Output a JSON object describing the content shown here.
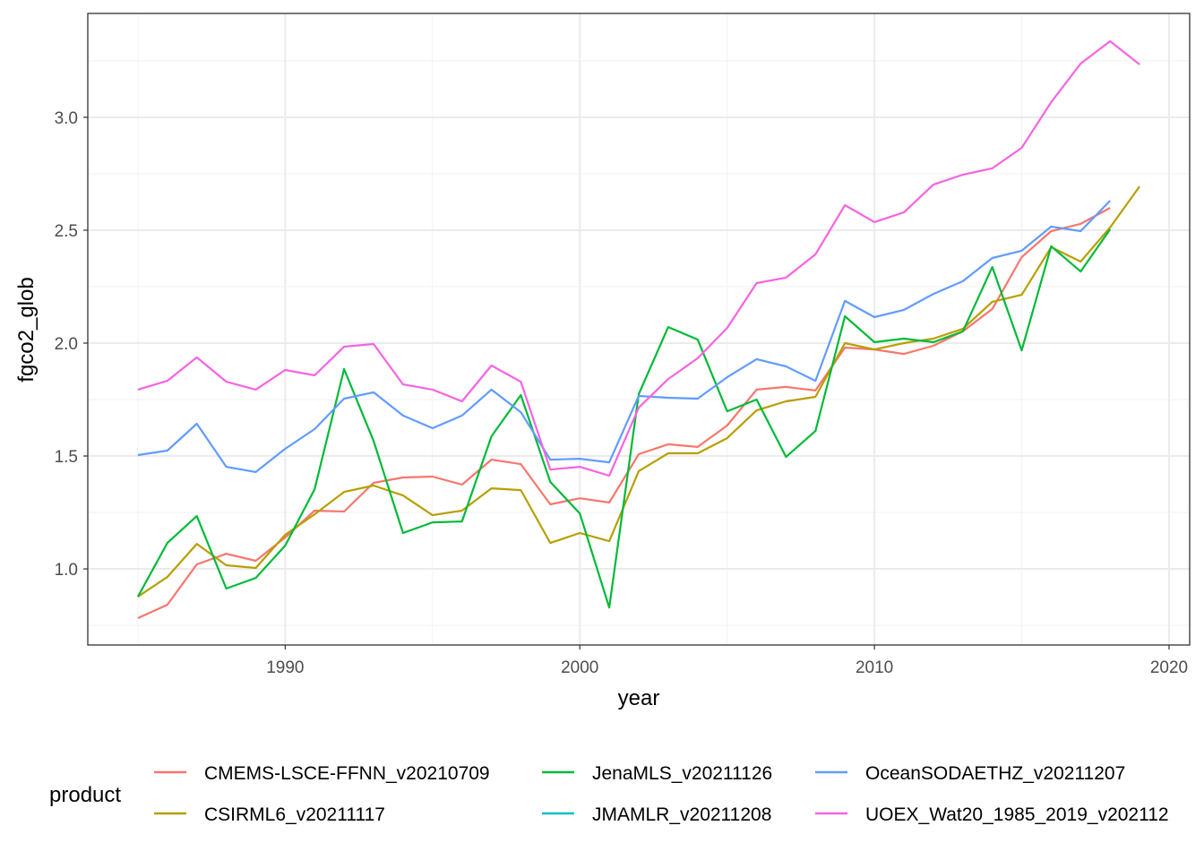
{
  "chart_data": {
    "type": "line",
    "xlabel": "year",
    "ylabel": "fgco2_glob",
    "xlim": [
      1983.3,
      2020.7
    ],
    "ylim": [
      0.663,
      3.46
    ],
    "xticks": [
      1990,
      2000,
      2010,
      2020
    ],
    "yticks": [
      1.0,
      1.5,
      2.0,
      2.5,
      3.0
    ],
    "ytick_labels": [
      "1.0",
      "1.5",
      "2.0",
      "2.5",
      "3.0"
    ],
    "grid": true,
    "legend": {
      "title": "product",
      "position": "bottom"
    },
    "series": [
      {
        "name": "CMEMS-LSCE-FFNN_v20210709",
        "color": "#F8766D",
        "x_start": 1985,
        "values": [
          0.782,
          0.841,
          1.02,
          1.067,
          1.036,
          1.139,
          1.258,
          1.254,
          1.381,
          1.405,
          1.409,
          1.373,
          1.484,
          1.464,
          1.286,
          1.313,
          1.294,
          1.508,
          1.552,
          1.54,
          1.635,
          1.794,
          1.806,
          1.79,
          1.98,
          1.972,
          1.952,
          1.988,
          2.052,
          2.151,
          2.381,
          2.496,
          2.528,
          2.599
        ]
      },
      {
        "name": "CSIRML6_v20211117",
        "color": "#B79F00",
        "x_start": 1985,
        "values": [
          0.877,
          0.964,
          1.111,
          1.016,
          1.004,
          1.151,
          1.242,
          1.341,
          1.369,
          1.325,
          1.238,
          1.258,
          1.357,
          1.349,
          1.115,
          1.159,
          1.123,
          1.433,
          1.512,
          1.512,
          1.579,
          1.702,
          1.742,
          1.762,
          2.0,
          1.972,
          2.0,
          2.02,
          2.063,
          2.183,
          2.214,
          2.425,
          2.361,
          2.512,
          2.694
        ]
      },
      {
        "name": "JenaMLS_v20211126",
        "color": "#00BA38",
        "x_start": 1985,
        "values": [
          0.877,
          1.115,
          1.234,
          0.913,
          0.96,
          1.103,
          1.353,
          1.885,
          1.567,
          1.159,
          1.206,
          1.21,
          1.587,
          1.77,
          1.385,
          1.246,
          0.829,
          1.774,
          2.071,
          2.016,
          1.698,
          1.75,
          1.496,
          1.611,
          2.119,
          2.004,
          2.02,
          2.004,
          2.052,
          2.337,
          1.968,
          2.429,
          2.317,
          2.504
        ]
      },
      {
        "name": "JMAMLR_v20211208",
        "color": "#00BFC4",
        "x_start": 1985,
        "values": []
      },
      {
        "name": "OceanSODAETHZ_v20211207",
        "color": "#619CFF",
        "x_start": 1985,
        "values": [
          1.504,
          1.524,
          1.643,
          1.452,
          1.429,
          1.532,
          1.619,
          1.754,
          1.782,
          1.679,
          1.623,
          1.679,
          1.794,
          1.694,
          1.484,
          1.488,
          1.472,
          1.766,
          1.758,
          1.754,
          1.849,
          1.929,
          1.897,
          1.833,
          2.187,
          2.115,
          2.147,
          2.218,
          2.274,
          2.377,
          2.409,
          2.516,
          2.496,
          2.631
        ]
      },
      {
        "name": "UOEX_Wat20_1985_2019_v202112",
        "color": "#F564E3",
        "x_start": 1985,
        "values": [
          1.794,
          1.833,
          1.937,
          1.829,
          1.794,
          1.881,
          1.857,
          1.984,
          1.996,
          1.817,
          1.794,
          1.742,
          1.901,
          1.829,
          1.44,
          1.452,
          1.413,
          1.714,
          1.841,
          1.933,
          2.067,
          2.266,
          2.29,
          2.393,
          2.611,
          2.536,
          2.579,
          2.702,
          2.746,
          2.774,
          2.865,
          3.067,
          3.238,
          3.337,
          3.234
        ]
      }
    ]
  }
}
